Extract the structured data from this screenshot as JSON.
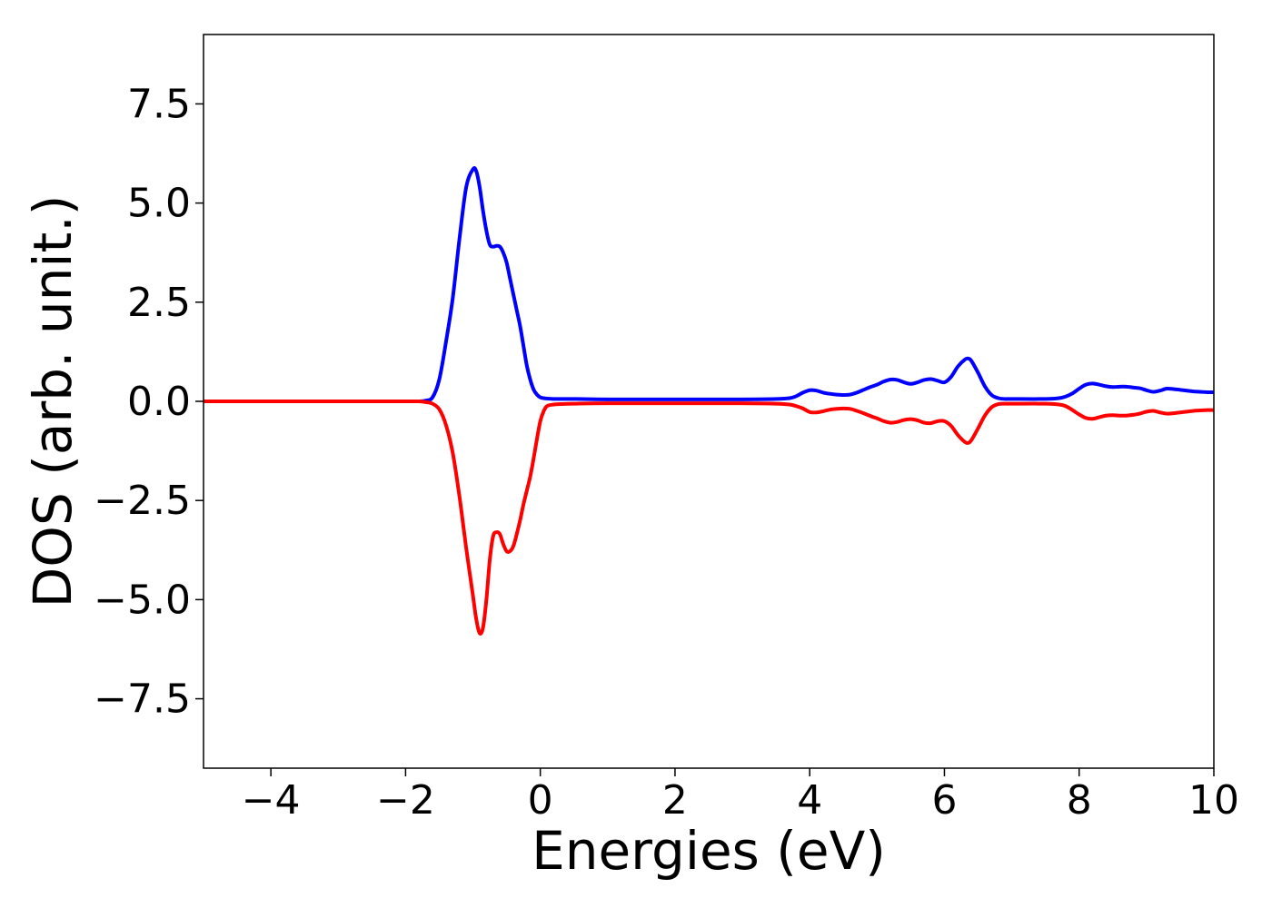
{
  "chart_data": {
    "type": "line",
    "title": "",
    "xlabel": "Energies (eV)",
    "ylabel": "DOS (arb. unit.)",
    "xlim": [
      -5,
      10
    ],
    "ylim": [
      -9.25,
      9.25
    ],
    "grid": false,
    "legend": "none",
    "x_ticks": [
      {
        "value": -4,
        "label": "−4"
      },
      {
        "value": -2,
        "label": "−2"
      },
      {
        "value": 0,
        "label": "0"
      },
      {
        "value": 2,
        "label": "2"
      },
      {
        "value": 4,
        "label": "4"
      },
      {
        "value": 6,
        "label": "6"
      },
      {
        "value": 8,
        "label": "8"
      },
      {
        "value": 10,
        "label": "10"
      }
    ],
    "y_ticks": [
      {
        "value": 7.5,
        "label": "7.5"
      },
      {
        "value": 5.0,
        "label": "5.0"
      },
      {
        "value": 2.5,
        "label": "2.5"
      },
      {
        "value": 0.0,
        "label": "0.0"
      },
      {
        "value": -2.5,
        "label": "−2.5"
      },
      {
        "value": -5.0,
        "label": "−5.0"
      },
      {
        "value": -7.5,
        "label": "−7.5"
      }
    ],
    "series": [
      {
        "color": "#0000ff",
        "x": [
          -5.0,
          -4.0,
          -3.0,
          -2.0,
          -1.8,
          -1.7,
          -1.6,
          -1.5,
          -1.4,
          -1.3,
          -1.2,
          -1.1,
          -1.0,
          -0.95,
          -0.9,
          -0.85,
          -0.8,
          -0.75,
          -0.7,
          -0.65,
          -0.6,
          -0.55,
          -0.5,
          -0.45,
          -0.4,
          -0.35,
          -0.3,
          -0.25,
          -0.2,
          -0.15,
          -0.1,
          -0.05,
          0.0,
          0.05,
          0.1,
          0.2,
          0.3,
          0.5,
          1.0,
          2.0,
          3.0,
          3.5,
          3.7,
          3.8,
          3.9,
          4.0,
          4.1,
          4.2,
          4.3,
          4.4,
          4.5,
          4.6,
          4.7,
          4.8,
          4.9,
          5.0,
          5.1,
          5.2,
          5.3,
          5.4,
          5.5,
          5.6,
          5.7,
          5.8,
          5.9,
          6.0,
          6.1,
          6.2,
          6.3,
          6.35,
          6.4,
          6.5,
          6.6,
          6.7,
          6.8,
          6.9,
          7.0,
          7.5,
          7.7,
          7.8,
          7.9,
          8.0,
          8.1,
          8.2,
          8.3,
          8.4,
          8.5,
          8.6,
          8.7,
          8.8,
          8.9,
          9.0,
          9.1,
          9.2,
          9.3,
          9.4,
          9.5,
          9.6,
          9.7,
          9.8,
          9.9,
          10.0
        ],
        "y": [
          0.0,
          0.0,
          0.0,
          0.0,
          0.0,
          0.02,
          0.1,
          0.55,
          1.5,
          2.6,
          4.1,
          5.4,
          5.85,
          5.8,
          5.4,
          4.8,
          4.3,
          3.95,
          3.9,
          3.92,
          3.9,
          3.75,
          3.5,
          3.1,
          2.7,
          2.3,
          1.9,
          1.4,
          0.9,
          0.55,
          0.3,
          0.17,
          0.1,
          0.08,
          0.07,
          0.06,
          0.06,
          0.06,
          0.05,
          0.05,
          0.05,
          0.06,
          0.08,
          0.13,
          0.22,
          0.28,
          0.27,
          0.22,
          0.19,
          0.17,
          0.16,
          0.17,
          0.22,
          0.29,
          0.36,
          0.42,
          0.5,
          0.55,
          0.54,
          0.48,
          0.44,
          0.48,
          0.54,
          0.56,
          0.52,
          0.48,
          0.62,
          0.88,
          1.05,
          1.08,
          1.02,
          0.72,
          0.38,
          0.16,
          0.08,
          0.06,
          0.06,
          0.06,
          0.08,
          0.12,
          0.2,
          0.32,
          0.42,
          0.45,
          0.42,
          0.38,
          0.36,
          0.37,
          0.37,
          0.35,
          0.33,
          0.28,
          0.24,
          0.27,
          0.32,
          0.31,
          0.29,
          0.27,
          0.25,
          0.24,
          0.23,
          0.23
        ]
      },
      {
        "color": "#ff0000",
        "x": [
          -5.0,
          -4.0,
          -3.0,
          -2.0,
          -1.8,
          -1.7,
          -1.6,
          -1.5,
          -1.4,
          -1.3,
          -1.2,
          -1.1,
          -1.0,
          -0.95,
          -0.9,
          -0.85,
          -0.8,
          -0.75,
          -0.7,
          -0.65,
          -0.6,
          -0.55,
          -0.5,
          -0.45,
          -0.4,
          -0.35,
          -0.3,
          -0.25,
          -0.2,
          -0.15,
          -0.1,
          -0.05,
          0.0,
          0.05,
          0.1,
          0.2,
          0.3,
          0.5,
          1.0,
          2.0,
          3.0,
          3.5,
          3.7,
          3.8,
          3.9,
          4.0,
          4.1,
          4.2,
          4.3,
          4.4,
          4.5,
          4.6,
          4.7,
          4.8,
          4.9,
          5.0,
          5.1,
          5.2,
          5.3,
          5.4,
          5.5,
          5.6,
          5.7,
          5.8,
          5.9,
          6.0,
          6.1,
          6.2,
          6.3,
          6.35,
          6.4,
          6.5,
          6.6,
          6.7,
          6.8,
          6.9,
          7.0,
          7.5,
          7.7,
          7.8,
          7.9,
          8.0,
          8.1,
          8.2,
          8.3,
          8.4,
          8.5,
          8.6,
          8.7,
          8.8,
          8.9,
          9.0,
          9.1,
          9.2,
          9.3,
          9.4,
          9.5,
          9.6,
          9.7,
          9.8,
          9.9,
          10.0
        ],
        "y": [
          0.0,
          0.0,
          0.0,
          0.0,
          0.0,
          -0.02,
          -0.06,
          -0.2,
          -0.6,
          -1.3,
          -2.4,
          -3.7,
          -4.9,
          -5.5,
          -5.85,
          -5.7,
          -5.0,
          -4.0,
          -3.4,
          -3.3,
          -3.35,
          -3.6,
          -3.78,
          -3.78,
          -3.65,
          -3.35,
          -3.0,
          -2.6,
          -2.25,
          -1.9,
          -1.45,
          -0.95,
          -0.5,
          -0.25,
          -0.12,
          -0.08,
          -0.07,
          -0.06,
          -0.05,
          -0.05,
          -0.05,
          -0.06,
          -0.08,
          -0.12,
          -0.18,
          -0.27,
          -0.28,
          -0.25,
          -0.21,
          -0.19,
          -0.18,
          -0.19,
          -0.24,
          -0.3,
          -0.37,
          -0.43,
          -0.5,
          -0.54,
          -0.52,
          -0.47,
          -0.45,
          -0.48,
          -0.54,
          -0.55,
          -0.5,
          -0.5,
          -0.62,
          -0.85,
          -1.02,
          -1.05,
          -0.98,
          -0.68,
          -0.36,
          -0.15,
          -0.07,
          -0.06,
          -0.06,
          -0.06,
          -0.08,
          -0.12,
          -0.22,
          -0.33,
          -0.42,
          -0.44,
          -0.4,
          -0.36,
          -0.35,
          -0.36,
          -0.36,
          -0.34,
          -0.31,
          -0.26,
          -0.24,
          -0.28,
          -0.31,
          -0.3,
          -0.28,
          -0.26,
          -0.24,
          -0.23,
          -0.22,
          -0.22
        ]
      }
    ]
  }
}
